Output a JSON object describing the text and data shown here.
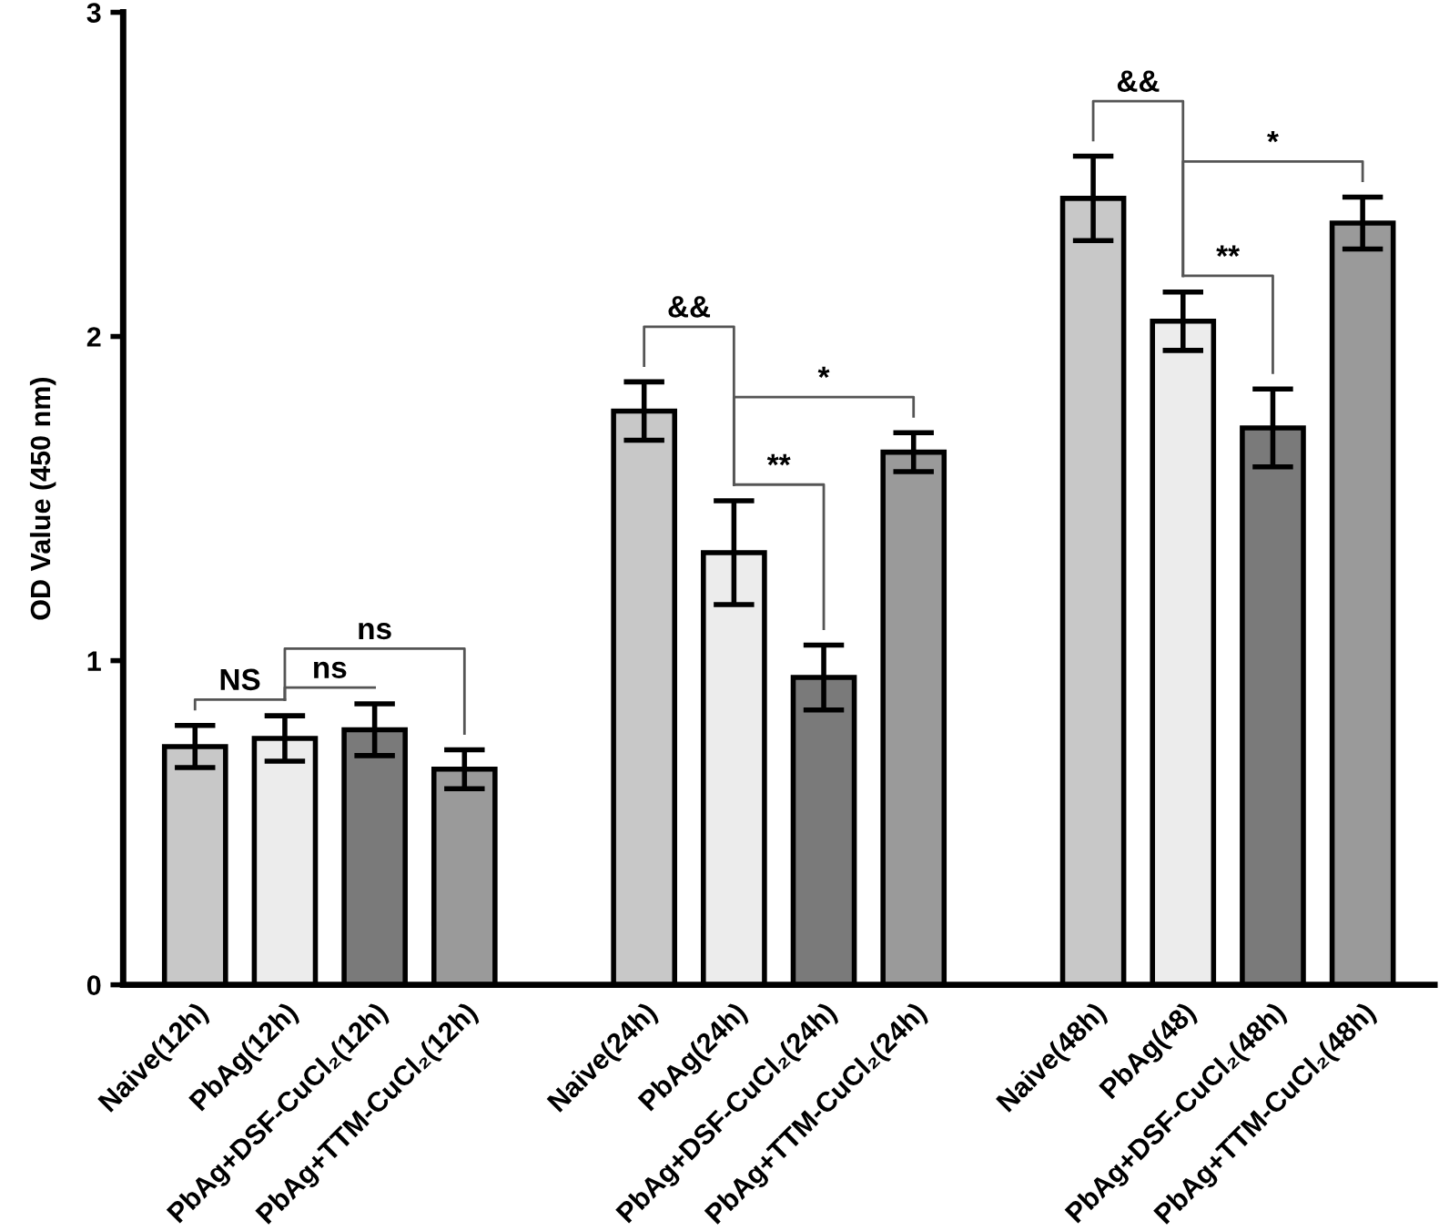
{
  "chart_data": {
    "type": "bar",
    "ylabel": "OD Value (450 nm)",
    "categories": [
      "Naive(12h)",
      "PbAg(12h)",
      "PbAg+DSF-CuCl₂(12h)",
      "PbAg+TTM-CuCl₂(12h)",
      null,
      "Naive(24h)",
      "PbAg(24h)",
      "PbAg+DSF-CuCl₂(24h)",
      "PbAg+TTM-CuCl₂(24h)",
      null,
      "Naive(48h)",
      "PbAg(48)",
      "PbAg+DSF-CuCl₂(48h)",
      "PbAg+TTM-CuCl₂(48h)"
    ],
    "values": [
      0.735,
      0.76,
      0.787,
      0.665,
      null,
      1.77,
      1.333,
      0.948,
      1.643,
      null,
      2.426,
      2.047,
      1.718,
      2.35
    ],
    "errors": [
      0.065,
      0.07,
      0.08,
      0.06,
      null,
      0.09,
      0.16,
      0.1,
      0.06,
      null,
      0.13,
      0.09,
      0.12,
      0.08
    ],
    "colors": [
      "#c8c8c8",
      "#ececec",
      "#7a7a7a",
      "#9a9a9a",
      null,
      "#c8c8c8",
      "#ececec",
      "#7a7a7a",
      "#9a9a9a",
      null,
      "#c8c8c8",
      "#ececec",
      "#7a7a7a",
      "#9a9a9a"
    ],
    "ylim": [
      0,
      3
    ],
    "yticks": [
      0,
      1,
      2,
      3
    ],
    "grid": false,
    "annotations": [
      "NS",
      "ns",
      "ns",
      "&&",
      "*",
      "**",
      "&&",
      "*",
      "**"
    ]
  }
}
